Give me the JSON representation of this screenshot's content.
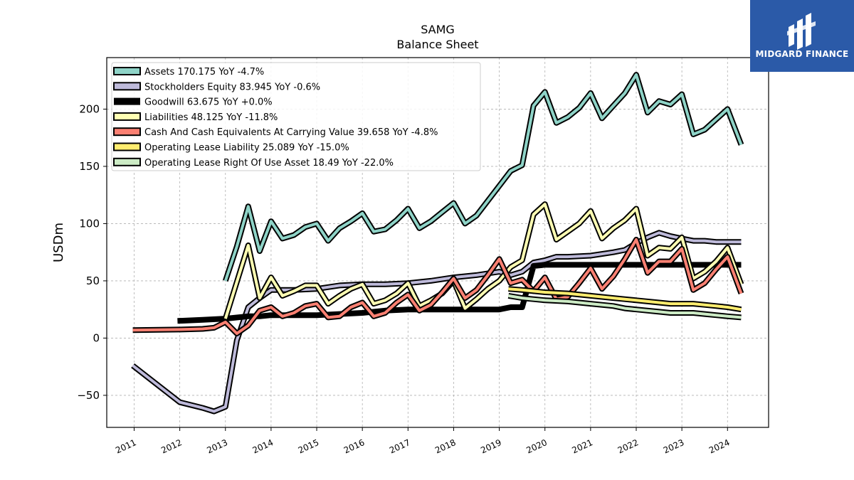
{
  "brand": {
    "name": "MIDGARD FINANCE",
    "bg_color": "#2b5aa8"
  },
  "chart_data": {
    "type": "line",
    "title": "SAMG",
    "subtitle": "Balance  Sheet",
    "xlabel": "",
    "ylabel": "USDm",
    "xlim": [
      2010.4,
      2024.9
    ],
    "ylim": [
      -78,
      245
    ],
    "x_ticks": [
      "2011",
      "2012",
      "2013",
      "2014",
      "2015",
      "2016",
      "2017",
      "2018",
      "2019",
      "2020",
      "2021",
      "2022",
      "2023",
      "2024"
    ],
    "y_ticks": [
      -50,
      0,
      50,
      100,
      150,
      200
    ],
    "grid": true,
    "legend_position": "top-left",
    "series": [
      {
        "name": "Assets  170.175 YoY -4.7%",
        "color": "#8ed3c7",
        "width": 3,
        "points": [
          [
            2013.0,
            50
          ],
          [
            2013.25,
            80
          ],
          [
            2013.5,
            115
          ],
          [
            2013.75,
            76
          ],
          [
            2014.0,
            102
          ],
          [
            2014.25,
            87
          ],
          [
            2014.5,
            90
          ],
          [
            2014.75,
            97
          ],
          [
            2015.0,
            100
          ],
          [
            2015.25,
            85
          ],
          [
            2015.5,
            96
          ],
          [
            2015.75,
            102
          ],
          [
            2016.0,
            109
          ],
          [
            2016.25,
            93
          ],
          [
            2016.5,
            95
          ],
          [
            2016.75,
            103
          ],
          [
            2017.0,
            113
          ],
          [
            2017.25,
            96
          ],
          [
            2017.5,
            102
          ],
          [
            2017.75,
            110
          ],
          [
            2018.0,
            118
          ],
          [
            2018.25,
            100
          ],
          [
            2018.5,
            107
          ],
          [
            2018.75,
            120
          ],
          [
            2019.0,
            133
          ],
          [
            2019.25,
            146
          ],
          [
            2019.5,
            151
          ],
          [
            2019.75,
            203
          ],
          [
            2020.0,
            215
          ],
          [
            2020.25,
            188
          ],
          [
            2020.5,
            193
          ],
          [
            2020.75,
            201
          ],
          [
            2021.0,
            214
          ],
          [
            2021.25,
            192
          ],
          [
            2021.5,
            203
          ],
          [
            2021.75,
            214
          ],
          [
            2022.0,
            230
          ],
          [
            2022.25,
            197
          ],
          [
            2022.5,
            207
          ],
          [
            2022.75,
            204
          ],
          [
            2023.0,
            213
          ],
          [
            2023.25,
            178
          ],
          [
            2023.5,
            182
          ],
          [
            2023.75,
            191
          ],
          [
            2024.0,
            200
          ],
          [
            2024.3,
            169
          ]
        ]
      },
      {
        "name": "Stockholders Equity  83.945 YoY -0.6%",
        "color": "#bebada",
        "width": 3,
        "points": [
          [
            2010.97,
            -24
          ],
          [
            2012.0,
            -56
          ],
          [
            2012.5,
            -61
          ],
          [
            2012.75,
            -64
          ],
          [
            2013.0,
            -60
          ],
          [
            2013.25,
            -2
          ],
          [
            2013.5,
            27
          ],
          [
            2013.75,
            35
          ],
          [
            2014.0,
            42
          ],
          [
            2014.5,
            42
          ],
          [
            2015.0,
            43
          ],
          [
            2015.5,
            46
          ],
          [
            2016.0,
            47
          ],
          [
            2016.5,
            47
          ],
          [
            2017.0,
            48
          ],
          [
            2017.5,
            50
          ],
          [
            2018.0,
            53
          ],
          [
            2018.5,
            55
          ],
          [
            2019.0,
            58
          ],
          [
            2019.25,
            55
          ],
          [
            2019.5,
            58
          ],
          [
            2019.75,
            66
          ],
          [
            2020.0,
            68
          ],
          [
            2020.25,
            71
          ],
          [
            2020.5,
            71
          ],
          [
            2021.0,
            72
          ],
          [
            2021.5,
            75
          ],
          [
            2021.75,
            77
          ],
          [
            2022.0,
            83
          ],
          [
            2022.25,
            88
          ],
          [
            2022.5,
            92
          ],
          [
            2022.75,
            89
          ],
          [
            2023.0,
            87
          ],
          [
            2023.25,
            85
          ],
          [
            2023.5,
            85
          ],
          [
            2023.75,
            84
          ],
          [
            2024.0,
            84
          ],
          [
            2024.3,
            84
          ]
        ]
      },
      {
        "name": "Goodwill  63.675 YoY +0.0%",
        "color": "#000000",
        "width": 7,
        "points": [
          [
            2011.95,
            15
          ],
          [
            2012.5,
            16
          ],
          [
            2013.0,
            17
          ],
          [
            2013.5,
            19
          ],
          [
            2013.75,
            19
          ],
          [
            2014.0,
            20
          ],
          [
            2015.0,
            20
          ],
          [
            2016.0,
            22
          ],
          [
            2016.5,
            24
          ],
          [
            2017.0,
            25
          ],
          [
            2018.0,
            25
          ],
          [
            2019.0,
            25
          ],
          [
            2019.25,
            27
          ],
          [
            2019.5,
            27
          ],
          [
            2019.75,
            63
          ],
          [
            2020.0,
            64
          ],
          [
            2021.0,
            64
          ],
          [
            2022.0,
            64
          ],
          [
            2023.0,
            64
          ],
          [
            2024.0,
            64
          ],
          [
            2024.3,
            64
          ]
        ]
      },
      {
        "name": "Liabilities  48.125 YoY -11.8%",
        "color": "#ffffb3",
        "width": 3,
        "points": [
          [
            2013.0,
            17
          ],
          [
            2013.25,
            49
          ],
          [
            2013.5,
            81
          ],
          [
            2013.75,
            35
          ],
          [
            2014.0,
            53
          ],
          [
            2014.25,
            37
          ],
          [
            2014.5,
            41
          ],
          [
            2014.75,
            46
          ],
          [
            2015.0,
            46
          ],
          [
            2015.25,
            30
          ],
          [
            2015.5,
            37
          ],
          [
            2015.75,
            43
          ],
          [
            2016.0,
            47
          ],
          [
            2016.25,
            30
          ],
          [
            2016.5,
            33
          ],
          [
            2016.75,
            39
          ],
          [
            2017.0,
            48
          ],
          [
            2017.25,
            28
          ],
          [
            2017.5,
            33
          ],
          [
            2017.75,
            39
          ],
          [
            2018.0,
            50
          ],
          [
            2018.25,
            26
          ],
          [
            2018.5,
            34
          ],
          [
            2018.75,
            43
          ],
          [
            2019.0,
            50
          ],
          [
            2019.25,
            62
          ],
          [
            2019.5,
            68
          ],
          [
            2019.75,
            108
          ],
          [
            2020.0,
            117
          ],
          [
            2020.25,
            86
          ],
          [
            2020.5,
            93
          ],
          [
            2020.75,
            100
          ],
          [
            2021.0,
            111
          ],
          [
            2021.25,
            87
          ],
          [
            2021.5,
            96
          ],
          [
            2021.75,
            103
          ],
          [
            2022.0,
            113
          ],
          [
            2022.25,
            72
          ],
          [
            2022.5,
            79
          ],
          [
            2022.75,
            78
          ],
          [
            2023.0,
            88
          ],
          [
            2023.25,
            52
          ],
          [
            2023.5,
            58
          ],
          [
            2023.75,
            67
          ],
          [
            2024.0,
            79
          ],
          [
            2024.3,
            47
          ]
        ]
      },
      {
        "name": "Cash And Cash Equivalents At Carrying Value  39.658 YoY -4.8%",
        "color": "#fb8072",
        "width": 3,
        "points": [
          [
            2010.97,
            7
          ],
          [
            2012.0,
            7.5
          ],
          [
            2012.5,
            8
          ],
          [
            2012.75,
            9
          ],
          [
            2013.0,
            14
          ],
          [
            2013.25,
            4
          ],
          [
            2013.5,
            11
          ],
          [
            2013.75,
            24
          ],
          [
            2014.0,
            27
          ],
          [
            2014.25,
            19
          ],
          [
            2014.5,
            22
          ],
          [
            2014.75,
            28
          ],
          [
            2015.0,
            30
          ],
          [
            2015.25,
            18
          ],
          [
            2015.5,
            19
          ],
          [
            2015.75,
            27
          ],
          [
            2016.0,
            31
          ],
          [
            2016.25,
            19
          ],
          [
            2016.5,
            22
          ],
          [
            2016.75,
            31
          ],
          [
            2017.0,
            38
          ],
          [
            2017.25,
            24
          ],
          [
            2017.5,
            29
          ],
          [
            2017.75,
            40
          ],
          [
            2018.0,
            52
          ],
          [
            2018.25,
            35
          ],
          [
            2018.5,
            42
          ],
          [
            2018.75,
            55
          ],
          [
            2019.0,
            69
          ],
          [
            2019.25,
            48
          ],
          [
            2019.5,
            51
          ],
          [
            2019.75,
            41
          ],
          [
            2020.0,
            53
          ],
          [
            2020.25,
            34
          ],
          [
            2020.5,
            36
          ],
          [
            2020.75,
            48
          ],
          [
            2021.0,
            61
          ],
          [
            2021.25,
            43
          ],
          [
            2021.5,
            54
          ],
          [
            2021.75,
            69
          ],
          [
            2022.0,
            86
          ],
          [
            2022.25,
            57
          ],
          [
            2022.5,
            67
          ],
          [
            2022.75,
            67
          ],
          [
            2023.0,
            78
          ],
          [
            2023.25,
            42
          ],
          [
            2023.5,
            48
          ],
          [
            2023.75,
            60
          ],
          [
            2024.0,
            71
          ],
          [
            2024.3,
            39
          ]
        ]
      },
      {
        "name": "Operating Lease Liability  25.089 YoY -15.0%",
        "color": "#ffed6f",
        "width": 3,
        "points": [
          [
            2019.2,
            43
          ],
          [
            2019.5,
            42
          ],
          [
            2019.75,
            41
          ],
          [
            2020.0,
            40
          ],
          [
            2020.5,
            39
          ],
          [
            2021.0,
            37
          ],
          [
            2021.5,
            35
          ],
          [
            2021.75,
            34
          ],
          [
            2022.0,
            33
          ],
          [
            2022.5,
            31
          ],
          [
            2022.75,
            30
          ],
          [
            2023.0,
            30
          ],
          [
            2023.25,
            30
          ],
          [
            2023.5,
            29
          ],
          [
            2023.75,
            28
          ],
          [
            2024.0,
            27
          ],
          [
            2024.3,
            25
          ]
        ]
      },
      {
        "name": "Operating Lease Right Of Use Asset  18.49 YoY -22.0%",
        "color": "#ccebc5",
        "width": 3,
        "points": [
          [
            2019.2,
            37
          ],
          [
            2019.5,
            35
          ],
          [
            2019.75,
            34
          ],
          [
            2020.0,
            33
          ],
          [
            2020.5,
            32
          ],
          [
            2021.0,
            30
          ],
          [
            2021.5,
            28
          ],
          [
            2021.75,
            26
          ],
          [
            2022.0,
            25
          ],
          [
            2022.5,
            23
          ],
          [
            2022.75,
            22
          ],
          [
            2023.0,
            22
          ],
          [
            2023.25,
            22
          ],
          [
            2023.5,
            21
          ],
          [
            2023.75,
            20
          ],
          [
            2024.0,
            19
          ],
          [
            2024.3,
            18
          ]
        ]
      }
    ]
  }
}
